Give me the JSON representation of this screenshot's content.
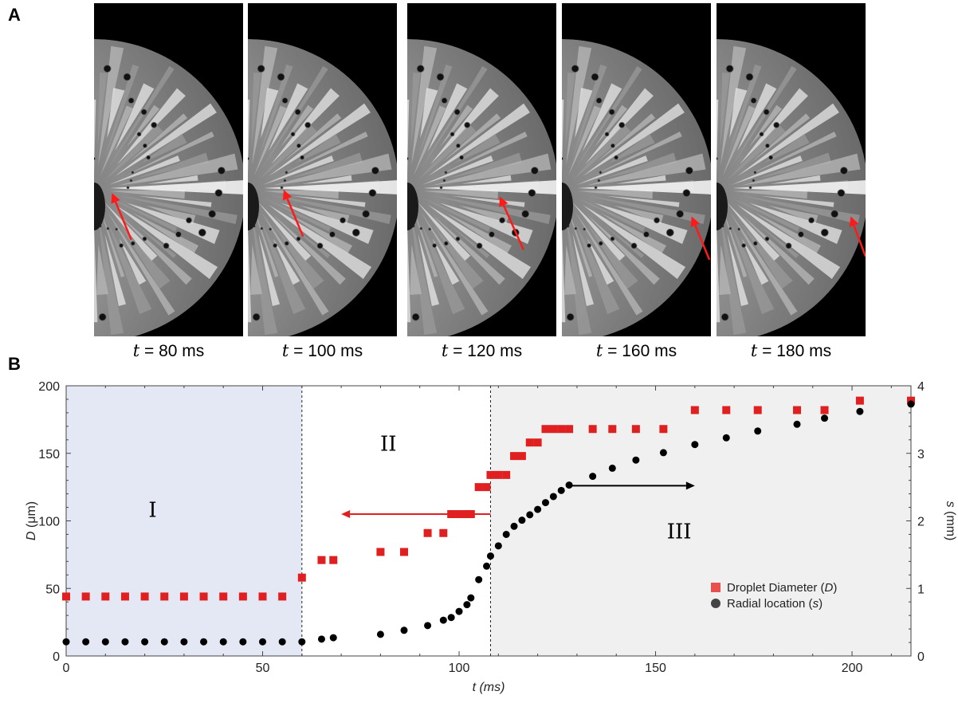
{
  "panels": {
    "a": "A",
    "b": "B"
  },
  "frames": [
    {
      "t_var": "t",
      "label": " = 80 ms",
      "arrow_tip": [
        0.12,
        0.57
      ],
      "arrow_tail": [
        0.25,
        0.71
      ]
    },
    {
      "t_var": "t",
      "label": " = 100 ms",
      "arrow_tip": [
        0.24,
        0.56
      ],
      "arrow_tail": [
        0.37,
        0.7
      ]
    },
    {
      "t_var": "t",
      "label": " = 120 ms",
      "arrow_tip": [
        0.62,
        0.58
      ],
      "arrow_tail": [
        0.78,
        0.74
      ]
    },
    {
      "t_var": "t",
      "label": " = 160 ms",
      "arrow_tip": [
        0.87,
        0.64
      ],
      "arrow_tail": [
        0.99,
        0.77
      ]
    },
    {
      "t_var": "t",
      "label": " = 180 ms",
      "arrow_tip": [
        0.9,
        0.64
      ],
      "arrow_tail": [
        1.0,
        0.76
      ]
    }
  ],
  "chart_data": {
    "type": "scatter",
    "xlabel": "t (ms)",
    "ylabel_left": "D",
    "ylabel_left_unit": " (μm)",
    "ylabel_right": "s",
    "ylabel_right_unit": " (mm)",
    "xlim": [
      0,
      215
    ],
    "ylim_left": [
      0,
      200
    ],
    "ylim_right": [
      0,
      4
    ],
    "x_ticks": [
      0,
      50,
      100,
      150,
      200
    ],
    "y_left_ticks": [
      0,
      50,
      100,
      150,
      200
    ],
    "y_right_ticks": [
      0,
      1,
      2,
      3,
      4
    ],
    "regions": [
      {
        "label": "I",
        "x0": 0,
        "x1": 60,
        "color": "#e3e8f4",
        "label_pos": [
          22,
          103
        ]
      },
      {
        "label": "II",
        "x0": 60,
        "x1": 108,
        "color": "#ffffff",
        "label_pos": [
          82,
          152
        ]
      },
      {
        "label": "III",
        "x0": 108,
        "x1": 215,
        "color": "#f0f0f0",
        "label_pos": [
          156,
          87
        ]
      }
    ],
    "dividers": [
      60,
      108
    ],
    "arrows": [
      {
        "axis": "left",
        "from": [
          108,
          105
        ],
        "to": [
          70,
          105
        ],
        "color": "#e02020"
      },
      {
        "axis": "left",
        "from": [
          128,
          126
        ],
        "to": [
          160,
          126
        ],
        "color": "#000000"
      }
    ],
    "series": [
      {
        "name": "Droplet Diameter (D)",
        "axis": "left",
        "marker": "square",
        "color": "#e02020",
        "points": [
          [
            0,
            44
          ],
          [
            5,
            44
          ],
          [
            10,
            44
          ],
          [
            15,
            44
          ],
          [
            20,
            44
          ],
          [
            25,
            44
          ],
          [
            30,
            44
          ],
          [
            35,
            44
          ],
          [
            40,
            44
          ],
          [
            45,
            44
          ],
          [
            50,
            44
          ],
          [
            55,
            44
          ],
          [
            60,
            58
          ],
          [
            65,
            71
          ],
          [
            68,
            71
          ],
          [
            80,
            77
          ],
          [
            86,
            77
          ],
          [
            92,
            91
          ],
          [
            96,
            91
          ],
          [
            98,
            105
          ],
          [
            100,
            105
          ],
          [
            102,
            105
          ],
          [
            103,
            105
          ],
          [
            105,
            125
          ],
          [
            107,
            125
          ],
          [
            108,
            134
          ],
          [
            110,
            134
          ],
          [
            112,
            134
          ],
          [
            114,
            148
          ],
          [
            116,
            148
          ],
          [
            118,
            158
          ],
          [
            120,
            158
          ],
          [
            122,
            168
          ],
          [
            124,
            168
          ],
          [
            126,
            168
          ],
          [
            128,
            168
          ],
          [
            134,
            168
          ],
          [
            139,
            168
          ],
          [
            145,
            168
          ],
          [
            152,
            168
          ],
          [
            160,
            182
          ],
          [
            168,
            182
          ],
          [
            176,
            182
          ],
          [
            186,
            182
          ],
          [
            193,
            182
          ],
          [
            202,
            189
          ],
          [
            215,
            189
          ]
        ]
      },
      {
        "name": "Radial location (s)",
        "axis": "right",
        "marker": "circle",
        "color": "#000000",
        "points": [
          [
            0,
            0.21
          ],
          [
            5,
            0.21
          ],
          [
            10,
            0.21
          ],
          [
            15,
            0.21
          ],
          [
            20,
            0.21
          ],
          [
            25,
            0.21
          ],
          [
            30,
            0.21
          ],
          [
            35,
            0.21
          ],
          [
            40,
            0.21
          ],
          [
            45,
            0.21
          ],
          [
            50,
            0.21
          ],
          [
            55,
            0.21
          ],
          [
            60,
            0.21
          ],
          [
            65,
            0.25
          ],
          [
            68,
            0.27
          ],
          [
            80,
            0.32
          ],
          [
            86,
            0.38
          ],
          [
            92,
            0.45
          ],
          [
            96,
            0.53
          ],
          [
            98,
            0.57
          ],
          [
            100,
            0.66
          ],
          [
            102,
            0.76
          ],
          [
            103,
            0.86
          ],
          [
            105,
            1.13
          ],
          [
            107,
            1.33
          ],
          [
            108,
            1.48
          ],
          [
            110,
            1.63
          ],
          [
            112,
            1.8
          ],
          [
            114,
            1.92
          ],
          [
            116,
            2.01
          ],
          [
            118,
            2.09
          ],
          [
            120,
            2.17
          ],
          [
            122,
            2.27
          ],
          [
            124,
            2.36
          ],
          [
            126,
            2.45
          ],
          [
            128,
            2.53
          ],
          [
            134,
            2.66
          ],
          [
            139,
            2.78
          ],
          [
            145,
            2.9
          ],
          [
            152,
            3.01
          ],
          [
            160,
            3.13
          ],
          [
            168,
            3.23
          ],
          [
            176,
            3.33
          ],
          [
            186,
            3.43
          ],
          [
            193,
            3.52
          ],
          [
            202,
            3.62
          ],
          [
            215,
            3.73
          ]
        ]
      }
    ],
    "legend": {
      "position": "bottom-right",
      "entries": [
        {
          "text_pre": "Droplet Diameter (",
          "text_var": "D",
          "text_post": ")",
          "marker": "square",
          "color": "#e85050"
        },
        {
          "text_pre": "Radial location (",
          "text_var": "s",
          "text_post": ")",
          "marker": "circle",
          "color": "#444444"
        }
      ]
    }
  }
}
